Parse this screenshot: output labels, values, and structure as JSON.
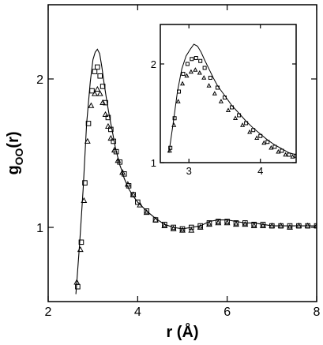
{
  "chart_data": [
    {
      "type": "line",
      "xlabel": "r (Å)",
      "ylabel_main": "g",
      "ylabel_sub": "OO",
      "ylabel_tail": "(r)",
      "xlim": [
        2,
        8
      ],
      "ylim": [
        0.5,
        2.5
      ],
      "xticks": [
        2,
        4,
        6,
        8
      ],
      "yticks": [
        1,
        2
      ],
      "grid": false,
      "series": [
        {
          "marker": "line",
          "x": [
            2.62,
            2.7,
            2.78,
            2.86,
            2.94,
            3.0,
            3.05,
            3.1,
            3.15,
            3.2,
            3.25,
            3.3,
            3.35,
            3.4,
            3.45,
            3.5,
            3.55,
            3.6,
            3.65,
            3.7,
            3.8,
            3.9,
            4.0,
            4.2,
            4.4,
            4.6,
            4.8,
            5.0,
            5.2,
            5.4,
            5.6,
            5.8,
            6.0,
            6.2,
            6.4,
            6.6,
            6.8,
            7.0,
            7.2,
            7.4,
            7.6,
            7.8,
            8.0
          ],
          "y": [
            0.55,
            0.88,
            1.25,
            1.7,
            1.98,
            2.13,
            2.18,
            2.2,
            2.17,
            2.08,
            1.97,
            1.87,
            1.78,
            1.7,
            1.62,
            1.54,
            1.48,
            1.42,
            1.38,
            1.33,
            1.26,
            1.21,
            1.17,
            1.11,
            1.06,
            1.02,
            1.0,
            0.99,
            1.0,
            1.01,
            1.04,
            1.05,
            1.05,
            1.04,
            1.03,
            1.03,
            1.02,
            1.01,
            1.01,
            1.01,
            1.01,
            1.01,
            1.01
          ]
        },
        {
          "marker": "square",
          "x": [
            2.66,
            2.74,
            2.82,
            2.9,
            2.98,
            3.04,
            3.1,
            3.16,
            3.22,
            3.28,
            3.34,
            3.4,
            3.46,
            3.52,
            3.6,
            3.7,
            3.8,
            3.9,
            4.0,
            4.2,
            4.4,
            4.6,
            4.8,
            5.0,
            5.2,
            5.4,
            5.6,
            5.8,
            6.0,
            6.2,
            6.4,
            6.6,
            6.8,
            7.0,
            7.2,
            7.4,
            7.6,
            7.8,
            8.0
          ],
          "y": [
            0.6,
            0.9,
            1.3,
            1.7,
            1.92,
            2.05,
            2.08,
            2.02,
            1.95,
            1.84,
            1.74,
            1.66,
            1.58,
            1.51,
            1.44,
            1.36,
            1.28,
            1.22,
            1.17,
            1.11,
            1.05,
            1.02,
            1.0,
            0.99,
            1.0,
            1.01,
            1.03,
            1.04,
            1.04,
            1.03,
            1.03,
            1.02,
            1.02,
            1.01,
            1.01,
            1.01,
            1.01,
            1.01,
            1.01
          ]
        },
        {
          "marker": "triangle",
          "x": [
            2.64,
            2.72,
            2.8,
            2.88,
            2.96,
            3.04,
            3.1,
            3.16,
            3.22,
            3.28,
            3.34,
            3.4,
            3.48,
            3.56,
            3.66,
            3.78,
            3.9,
            4.05,
            4.2,
            4.4,
            4.6,
            4.8,
            5.0,
            5.2,
            5.4,
            5.6,
            5.8,
            6.0,
            6.2,
            6.4,
            6.6,
            6.8,
            7.0,
            7.2,
            7.4,
            7.6,
            7.8,
            8.0
          ],
          "y": [
            0.63,
            0.85,
            1.18,
            1.58,
            1.82,
            1.9,
            1.93,
            1.9,
            1.84,
            1.76,
            1.68,
            1.6,
            1.52,
            1.45,
            1.37,
            1.29,
            1.22,
            1.15,
            1.1,
            1.05,
            1.01,
            0.99,
            0.98,
            0.98,
            1.0,
            1.02,
            1.03,
            1.03,
            1.02,
            1.02,
            1.01,
            1.01,
            1.01,
            1.01,
            1.0,
            1.01,
            1.01,
            1.01
          ]
        }
      ]
    },
    {
      "type": "line",
      "xlabel": "",
      "ylabel": "",
      "xlim": [
        2.6,
        4.5
      ],
      "ylim": [
        1.0,
        2.4
      ],
      "xticks": [
        3,
        4
      ],
      "yticks": [
        1,
        2
      ],
      "grid": false,
      "series": [
        {
          "marker": "line",
          "x": [
            2.72,
            2.78,
            2.84,
            2.9,
            2.96,
            3.02,
            3.07,
            3.12,
            3.17,
            3.22,
            3.28,
            3.34,
            3.4,
            3.5,
            3.6,
            3.7,
            3.8,
            3.9,
            4.0,
            4.1,
            4.2,
            4.3,
            4.4,
            4.5
          ],
          "y": [
            1.1,
            1.4,
            1.72,
            1.95,
            2.08,
            2.15,
            2.2,
            2.18,
            2.12,
            2.04,
            1.95,
            1.86,
            1.78,
            1.68,
            1.58,
            1.5,
            1.42,
            1.35,
            1.29,
            1.23,
            1.18,
            1.14,
            1.1,
            1.08
          ]
        },
        {
          "marker": "square",
          "x": [
            2.74,
            2.8,
            2.86,
            2.92,
            2.98,
            3.04,
            3.1,
            3.16,
            3.22,
            3.3,
            3.4,
            3.5,
            3.6,
            3.7,
            3.8,
            3.9,
            4.0,
            4.1,
            4.2,
            4.3,
            4.4,
            4.5
          ],
          "y": [
            1.15,
            1.45,
            1.72,
            1.9,
            2.0,
            2.05,
            2.06,
            2.03,
            1.96,
            1.86,
            1.76,
            1.66,
            1.56,
            1.48,
            1.4,
            1.33,
            1.27,
            1.21,
            1.16,
            1.12,
            1.08,
            1.07
          ]
        },
        {
          "marker": "triangle",
          "x": [
            2.73,
            2.79,
            2.85,
            2.91,
            2.97,
            3.03,
            3.09,
            3.15,
            3.21,
            3.28,
            3.36,
            3.45,
            3.55,
            3.65,
            3.75,
            3.85,
            3.95,
            4.05,
            4.15,
            4.25,
            4.35,
            4.45
          ],
          "y": [
            1.12,
            1.38,
            1.62,
            1.8,
            1.88,
            1.92,
            1.94,
            1.91,
            1.86,
            1.78,
            1.7,
            1.62,
            1.53,
            1.45,
            1.38,
            1.31,
            1.25,
            1.2,
            1.15,
            1.11,
            1.08,
            1.06
          ]
        }
      ]
    }
  ]
}
